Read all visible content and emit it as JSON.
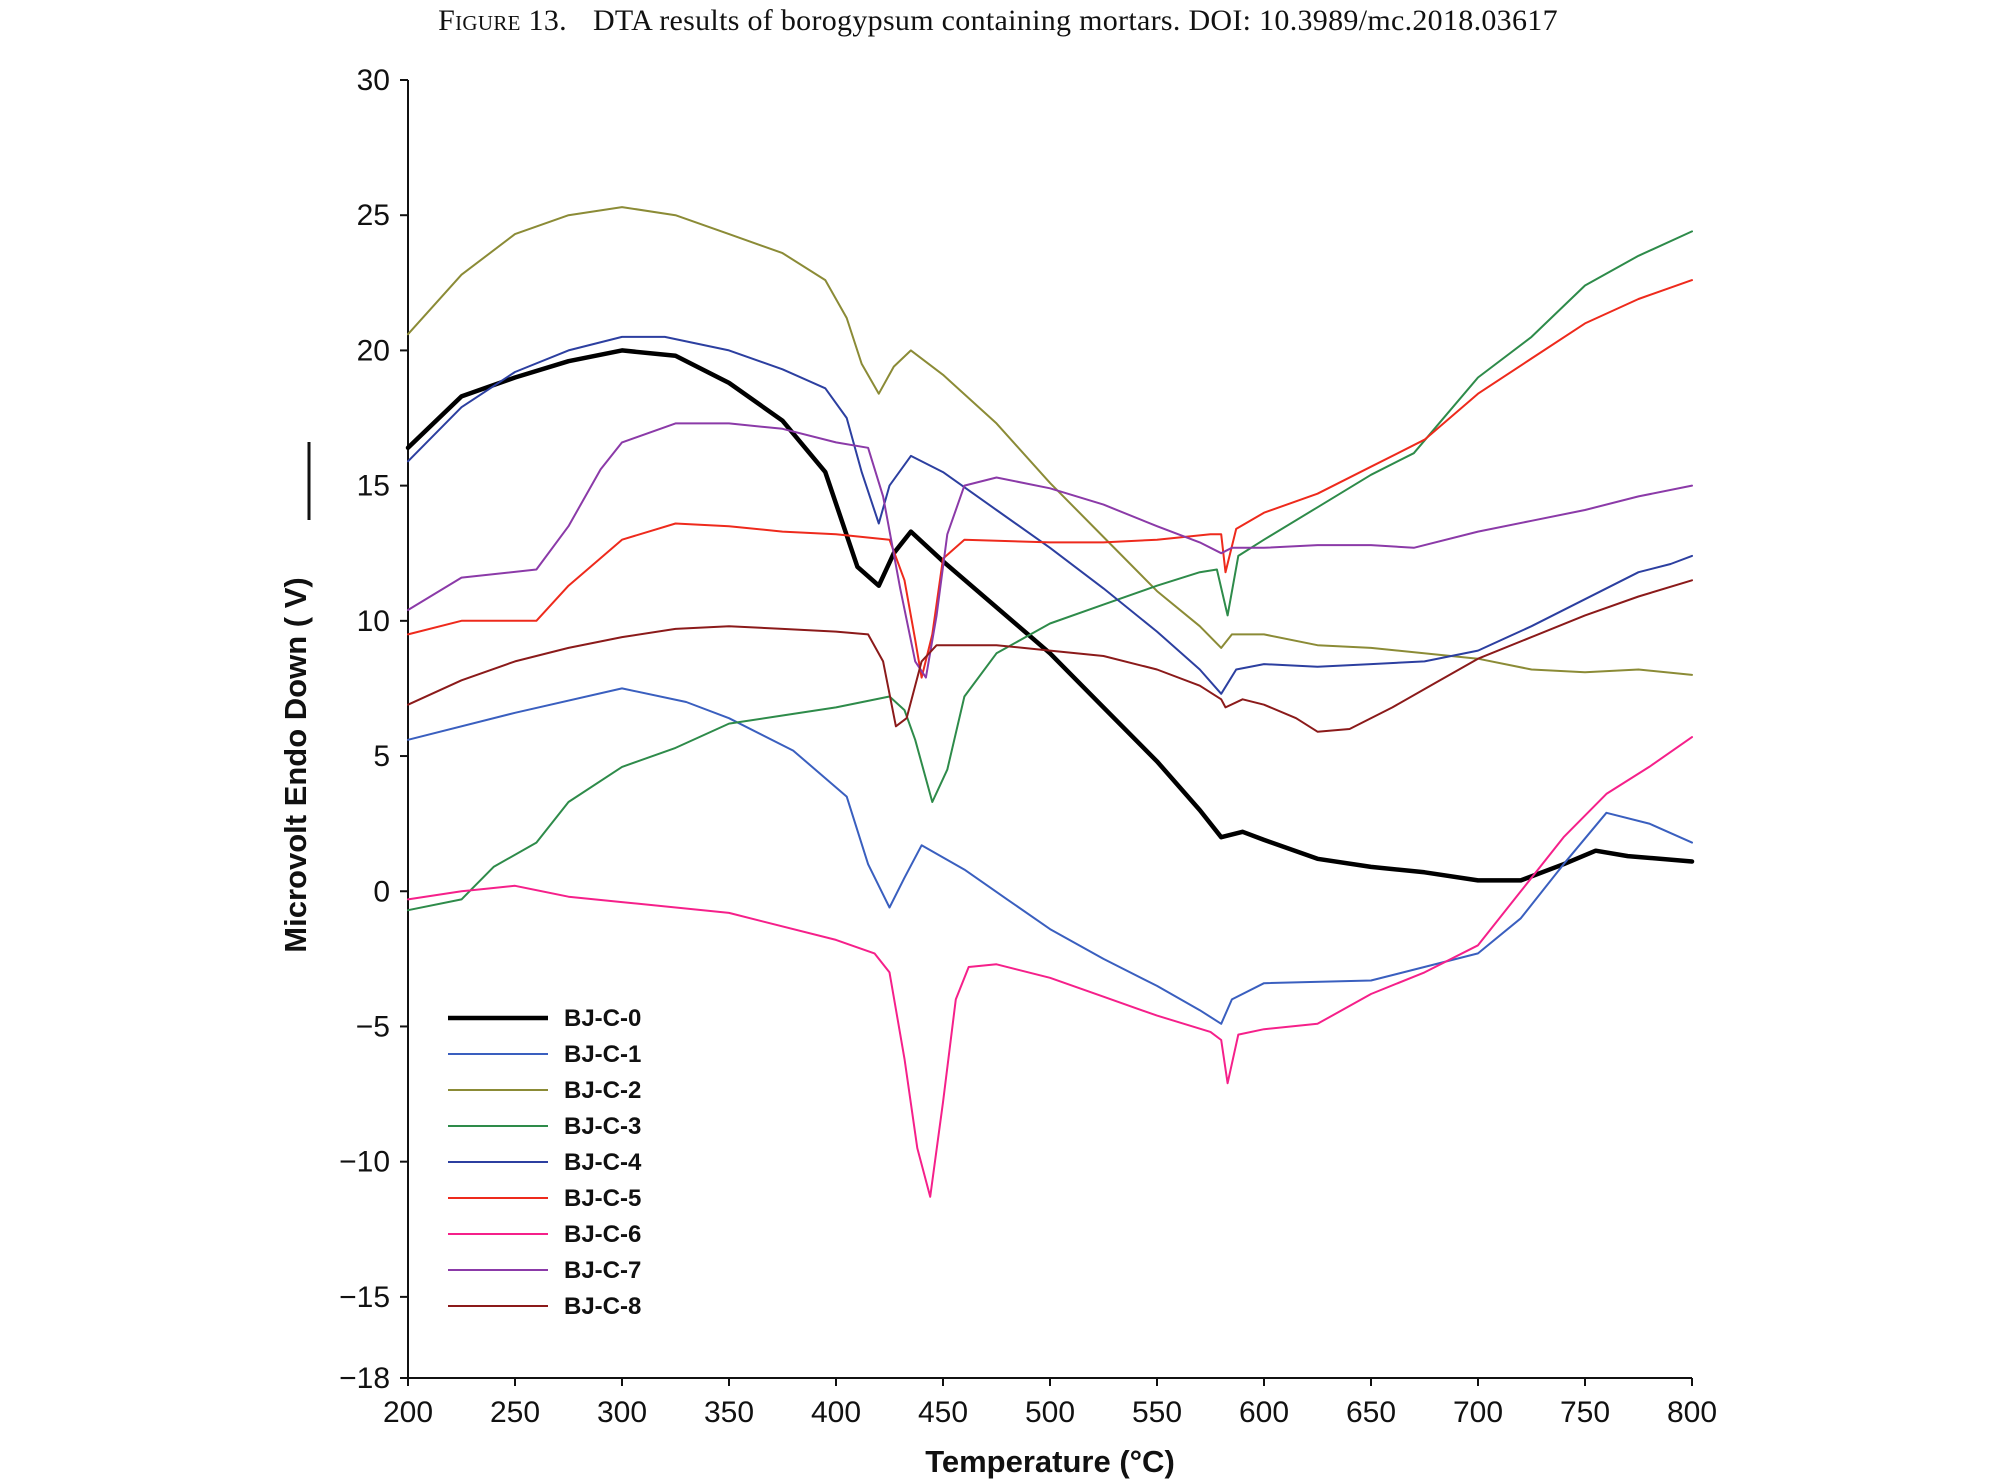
{
  "caption": {
    "label": "Figure 13.",
    "text": "DTA results of borogypsum containing mortars. DOI: 10.3989/mc.2018.03617"
  },
  "chart_data": {
    "type": "line",
    "title": "",
    "xlabel": "Temperature (°C)",
    "ylabel": "Microvolt Endo Down ( V)",
    "xlim": [
      200,
      800
    ],
    "ylim": [
      -18,
      30
    ],
    "x_ticks": [
      200,
      250,
      300,
      350,
      400,
      450,
      500,
      550,
      600,
      650,
      700,
      750,
      800
    ],
    "y_ticks": [
      30,
      25,
      20,
      15,
      10,
      5,
      0,
      -5,
      -10,
      -15,
      -18
    ],
    "grid": false,
    "legend_position": "bottom-left",
    "series": [
      {
        "name": "BJ-C-0",
        "color": "#000000",
        "points": [
          [
            200,
            16.4
          ],
          [
            225,
            18.3
          ],
          [
            250,
            19
          ],
          [
            275,
            19.6
          ],
          [
            300,
            20
          ],
          [
            325,
            19.8
          ],
          [
            350,
            18.8
          ],
          [
            375,
            17.4
          ],
          [
            395,
            15.5
          ],
          [
            410,
            12
          ],
          [
            420,
            11.3
          ],
          [
            427,
            12.5
          ],
          [
            435,
            13.3
          ],
          [
            450,
            12.2
          ],
          [
            475,
            10.5
          ],
          [
            500,
            8.8
          ],
          [
            525,
            6.8
          ],
          [
            550,
            4.8
          ],
          [
            570,
            3
          ],
          [
            580,
            2
          ],
          [
            590,
            2.2
          ],
          [
            600,
            1.9
          ],
          [
            625,
            1.2
          ],
          [
            650,
            0.9
          ],
          [
            675,
            0.7
          ],
          [
            700,
            0.4
          ],
          [
            720,
            0.4
          ],
          [
            740,
            1
          ],
          [
            755,
            1.5
          ],
          [
            770,
            1.3
          ],
          [
            800,
            1.1
          ]
        ]
      },
      {
        "name": "BJ-C-1",
        "color": "#3a5fbf",
        "points": [
          [
            200,
            5.6
          ],
          [
            250,
            6.6
          ],
          [
            300,
            7.5
          ],
          [
            330,
            7
          ],
          [
            350,
            6.4
          ],
          [
            380,
            5.2
          ],
          [
            405,
            3.5
          ],
          [
            415,
            1
          ],
          [
            425,
            -0.6
          ],
          [
            432,
            0.5
          ],
          [
            440,
            1.7
          ],
          [
            460,
            0.8
          ],
          [
            480,
            -0.3
          ],
          [
            500,
            -1.4
          ],
          [
            525,
            -2.5
          ],
          [
            550,
            -3.5
          ],
          [
            570,
            -4.4
          ],
          [
            580,
            -4.9
          ],
          [
            585,
            -4
          ],
          [
            600,
            -3.4
          ],
          [
            650,
            -3.3
          ],
          [
            700,
            -2.3
          ],
          [
            720,
            -1
          ],
          [
            740,
            1
          ],
          [
            760,
            2.9
          ],
          [
            780,
            2.5
          ],
          [
            800,
            1.8
          ]
        ]
      },
      {
        "name": "BJ-C-2",
        "color": "#8b8b36",
        "points": [
          [
            200,
            20.6
          ],
          [
            225,
            22.8
          ],
          [
            250,
            24.3
          ],
          [
            275,
            25
          ],
          [
            300,
            25.3
          ],
          [
            325,
            25
          ],
          [
            350,
            24.3
          ],
          [
            375,
            23.6
          ],
          [
            395,
            22.6
          ],
          [
            405,
            21.2
          ],
          [
            412,
            19.5
          ],
          [
            420,
            18.4
          ],
          [
            427,
            19.4
          ],
          [
            435,
            20
          ],
          [
            450,
            19.1
          ],
          [
            475,
            17.3
          ],
          [
            500,
            15.1
          ],
          [
            525,
            13.1
          ],
          [
            550,
            11.1
          ],
          [
            570,
            9.8
          ],
          [
            580,
            9
          ],
          [
            585,
            9.5
          ],
          [
            600,
            9.5
          ],
          [
            625,
            9.1
          ],
          [
            650,
            9
          ],
          [
            700,
            8.6
          ],
          [
            725,
            8.2
          ],
          [
            750,
            8.1
          ],
          [
            775,
            8.2
          ],
          [
            800,
            8
          ]
        ]
      },
      {
        "name": "BJ-C-3",
        "color": "#2e8b4a",
        "points": [
          [
            200,
            -0.7
          ],
          [
            225,
            -0.3
          ],
          [
            240,
            0.9
          ],
          [
            260,
            1.8
          ],
          [
            275,
            3.3
          ],
          [
            300,
            4.6
          ],
          [
            325,
            5.3
          ],
          [
            350,
            6.2
          ],
          [
            375,
            6.5
          ],
          [
            400,
            6.8
          ],
          [
            425,
            7.2
          ],
          [
            432,
            6.7
          ],
          [
            437,
            5.6
          ],
          [
            445,
            3.3
          ],
          [
            452,
            4.5
          ],
          [
            460,
            7.2
          ],
          [
            475,
            8.8
          ],
          [
            500,
            9.9
          ],
          [
            525,
            10.6
          ],
          [
            550,
            11.3
          ],
          [
            570,
            11.8
          ],
          [
            578,
            11.9
          ],
          [
            583,
            10.2
          ],
          [
            588,
            12.4
          ],
          [
            600,
            13
          ],
          [
            625,
            14.2
          ],
          [
            650,
            15.4
          ],
          [
            670,
            16.2
          ],
          [
            685,
            17.6
          ],
          [
            700,
            19
          ],
          [
            725,
            20.5
          ],
          [
            750,
            22.4
          ],
          [
            775,
            23.5
          ],
          [
            800,
            24.4
          ]
        ]
      },
      {
        "name": "BJ-C-4",
        "color": "#2c3fa0",
        "points": [
          [
            200,
            15.9
          ],
          [
            225,
            17.9
          ],
          [
            250,
            19.2
          ],
          [
            275,
            20
          ],
          [
            300,
            20.5
          ],
          [
            320,
            20.5
          ],
          [
            350,
            20
          ],
          [
            375,
            19.3
          ],
          [
            395,
            18.6
          ],
          [
            405,
            17.5
          ],
          [
            412,
            15.5
          ],
          [
            420,
            13.6
          ],
          [
            425,
            15
          ],
          [
            435,
            16.1
          ],
          [
            450,
            15.5
          ],
          [
            475,
            14.1
          ],
          [
            500,
            12.7
          ],
          [
            525,
            11.2
          ],
          [
            550,
            9.6
          ],
          [
            570,
            8.2
          ],
          [
            580,
            7.3
          ],
          [
            587,
            8.2
          ],
          [
            600,
            8.4
          ],
          [
            625,
            8.3
          ],
          [
            650,
            8.4
          ],
          [
            675,
            8.5
          ],
          [
            700,
            8.9
          ],
          [
            725,
            9.8
          ],
          [
            750,
            10.8
          ],
          [
            775,
            11.8
          ],
          [
            790,
            12.1
          ],
          [
            800,
            12.4
          ]
        ]
      },
      {
        "name": "BJ-C-5",
        "color": "#ee2a1c",
        "points": [
          [
            200,
            9.5
          ],
          [
            225,
            10
          ],
          [
            260,
            10
          ],
          [
            275,
            11.3
          ],
          [
            300,
            13
          ],
          [
            325,
            13.6
          ],
          [
            350,
            13.5
          ],
          [
            375,
            13.3
          ],
          [
            400,
            13.2
          ],
          [
            425,
            13
          ],
          [
            432,
            11.5
          ],
          [
            437,
            9.3
          ],
          [
            440,
            7.9
          ],
          [
            445,
            9.5
          ],
          [
            450,
            12.3
          ],
          [
            460,
            13
          ],
          [
            500,
            12.9
          ],
          [
            525,
            12.9
          ],
          [
            550,
            13
          ],
          [
            575,
            13.2
          ],
          [
            580,
            13.2
          ],
          [
            582,
            11.8
          ],
          [
            587,
            13.4
          ],
          [
            600,
            14
          ],
          [
            625,
            14.7
          ],
          [
            650,
            15.7
          ],
          [
            675,
            16.7
          ],
          [
            700,
            18.4
          ],
          [
            725,
            19.7
          ],
          [
            750,
            21
          ],
          [
            775,
            21.9
          ],
          [
            800,
            22.6
          ]
        ]
      },
      {
        "name": "BJ-C-6",
        "color": "#f5208a",
        "points": [
          [
            200,
            -0.3
          ],
          [
            225,
            0
          ],
          [
            250,
            0.2
          ],
          [
            275,
            -0.2
          ],
          [
            300,
            -0.4
          ],
          [
            350,
            -0.8
          ],
          [
            400,
            -1.8
          ],
          [
            418,
            -2.3
          ],
          [
            425,
            -3
          ],
          [
            432,
            -6.2
          ],
          [
            438,
            -9.5
          ],
          [
            444,
            -11.3
          ],
          [
            450,
            -7.8
          ],
          [
            456,
            -4
          ],
          [
            462,
            -2.8
          ],
          [
            475,
            -2.7
          ],
          [
            500,
            -3.2
          ],
          [
            525,
            -3.9
          ],
          [
            550,
            -4.6
          ],
          [
            575,
            -5.2
          ],
          [
            580,
            -5.5
          ],
          [
            583,
            -7.1
          ],
          [
            588,
            -5.3
          ],
          [
            600,
            -5.1
          ],
          [
            625,
            -4.9
          ],
          [
            650,
            -3.8
          ],
          [
            675,
            -3
          ],
          [
            700,
            -2
          ],
          [
            720,
            0
          ],
          [
            740,
            2
          ],
          [
            760,
            3.6
          ],
          [
            780,
            4.6
          ],
          [
            800,
            5.7
          ]
        ]
      },
      {
        "name": "BJ-C-7",
        "color": "#8b3aa8",
        "points": [
          [
            200,
            10.4
          ],
          [
            225,
            11.6
          ],
          [
            260,
            11.9
          ],
          [
            275,
            13.5
          ],
          [
            290,
            15.6
          ],
          [
            300,
            16.6
          ],
          [
            325,
            17.3
          ],
          [
            350,
            17.3
          ],
          [
            375,
            17.1
          ],
          [
            400,
            16.6
          ],
          [
            415,
            16.4
          ],
          [
            422,
            14.6
          ],
          [
            430,
            11.2
          ],
          [
            437,
            8.5
          ],
          [
            442,
            7.9
          ],
          [
            447,
            10.2
          ],
          [
            452,
            13.2
          ],
          [
            460,
            15
          ],
          [
            475,
            15.3
          ],
          [
            500,
            14.9
          ],
          [
            525,
            14.3
          ],
          [
            550,
            13.5
          ],
          [
            570,
            12.9
          ],
          [
            580,
            12.5
          ],
          [
            585,
            12.7
          ],
          [
            600,
            12.7
          ],
          [
            625,
            12.8
          ],
          [
            650,
            12.8
          ],
          [
            670,
            12.7
          ],
          [
            700,
            13.3
          ],
          [
            725,
            13.7
          ],
          [
            750,
            14.1
          ],
          [
            775,
            14.6
          ],
          [
            800,
            15
          ]
        ]
      },
      {
        "name": "BJ-C-8",
        "color": "#8b1a1a",
        "points": [
          [
            200,
            6.9
          ],
          [
            225,
            7.8
          ],
          [
            250,
            8.5
          ],
          [
            275,
            9
          ],
          [
            300,
            9.4
          ],
          [
            325,
            9.7
          ],
          [
            350,
            9.8
          ],
          [
            375,
            9.7
          ],
          [
            400,
            9.6
          ],
          [
            415,
            9.5
          ],
          [
            422,
            8.5
          ],
          [
            428,
            6.1
          ],
          [
            433,
            6.4
          ],
          [
            440,
            8.5
          ],
          [
            447,
            9.1
          ],
          [
            475,
            9.1
          ],
          [
            500,
            8.9
          ],
          [
            525,
            8.7
          ],
          [
            550,
            8.2
          ],
          [
            570,
            7.6
          ],
          [
            580,
            7.1
          ],
          [
            582,
            6.8
          ],
          [
            590,
            7.1
          ],
          [
            600,
            6.9
          ],
          [
            615,
            6.4
          ],
          [
            625,
            5.9
          ],
          [
            640,
            6
          ],
          [
            660,
            6.8
          ],
          [
            680,
            7.7
          ],
          [
            700,
            8.6
          ],
          [
            725,
            9.4
          ],
          [
            750,
            10.2
          ],
          [
            775,
            10.9
          ],
          [
            800,
            11.5
          ]
        ]
      }
    ]
  }
}
